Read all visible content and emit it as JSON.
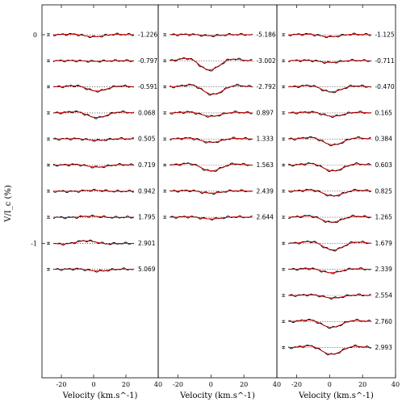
{
  "chart_data": {
    "type": "line",
    "ylabel": "V/I_c (%)",
    "xlabel": "Velocity (km.s^-1)",
    "x_range": [
      -32,
      40
    ],
    "x_ticks": [
      -20,
      0,
      20,
      40
    ],
    "x_ticks_last_panel": [
      -20,
      0,
      20,
      40
    ],
    "y_ticks": [
      {
        "label": "0",
        "value": 0
      },
      {
        "label": "-1",
        "value": -1
      }
    ],
    "colors": {
      "observed": "#000000",
      "model": "#d40000"
    },
    "panels": [
      {
        "profiles": [
          {
            "phase": "-1.226",
            "amp": 0.12,
            "vshift": 0
          },
          {
            "phase": "-0.797",
            "amp": 0.03,
            "vshift": 0
          },
          {
            "phase": "-0.591",
            "amp": 0.25,
            "vshift": 2
          },
          {
            "phase": "0.068",
            "amp": 0.28,
            "vshift": 2
          },
          {
            "phase": "0.505",
            "amp": 0.08,
            "vshift": 2
          },
          {
            "phase": "0.719",
            "amp": 0.12,
            "vshift": 2
          },
          {
            "phase": "0.942",
            "amp": -0.05,
            "vshift": 0
          },
          {
            "phase": "1.795",
            "amp": -0.06,
            "vshift": -2
          },
          {
            "phase": "2.901",
            "amp": -0.15,
            "vshift": -5
          },
          {
            "phase": "5.069",
            "amp": 0.1,
            "vshift": 3
          }
        ]
      },
      {
        "profiles": [
          {
            "phase": "-5.186",
            "amp": 0.06,
            "vshift": 0
          },
          {
            "phase": "-3.002",
            "amp": 0.55,
            "vshift": -1
          },
          {
            "phase": "-2.792",
            "amp": 0.45,
            "vshift": 1
          },
          {
            "phase": "0.897",
            "amp": 0.2,
            "vshift": 0
          },
          {
            "phase": "1.333",
            "amp": 0.2,
            "vshift": 0
          },
          {
            "phase": "1.563",
            "amp": 0.35,
            "vshift": 0
          },
          {
            "phase": "2.439",
            "amp": 0.12,
            "vshift": 0
          },
          {
            "phase": "2.644",
            "amp": 0.1,
            "vshift": 0
          }
        ]
      },
      {
        "profiles": [
          {
            "phase": "-1.125",
            "amp": 0.12,
            "vshift": 0
          },
          {
            "phase": "-0.711",
            "amp": 0.1,
            "vshift": 0
          },
          {
            "phase": "-0.470",
            "amp": 0.3,
            "vshift": 1
          },
          {
            "phase": "0.165",
            "amp": 0.2,
            "vshift": 2
          },
          {
            "phase": "0.384",
            "amp": 0.35,
            "vshift": 2
          },
          {
            "phase": "0.603",
            "amp": 0.35,
            "vshift": 2
          },
          {
            "phase": "0.825",
            "amp": 0.28,
            "vshift": 2
          },
          {
            "phase": "1.265",
            "amp": 0.3,
            "vshift": 1
          },
          {
            "phase": "1.679",
            "amp": 0.4,
            "vshift": 2
          },
          {
            "phase": "2.339",
            "amp": 0.2,
            "vshift": 1
          },
          {
            "phase": "2.554",
            "amp": 0.15,
            "vshift": 2
          },
          {
            "phase": "2.760",
            "amp": 0.35,
            "vshift": 1
          },
          {
            "phase": "2.993",
            "amp": 0.4,
            "vshift": 1
          }
        ]
      }
    ]
  }
}
